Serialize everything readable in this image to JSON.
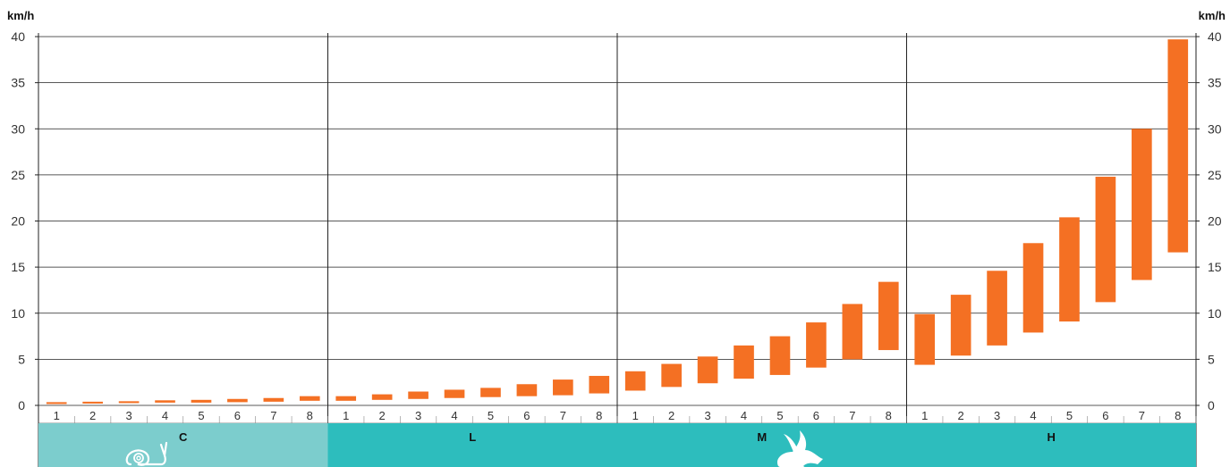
{
  "chart_data": {
    "type": "bar",
    "unit_label_left": "km/h",
    "unit_label_right": "km/h",
    "ylim": [
      0,
      40
    ],
    "yticks": [
      "0",
      "5",
      "10",
      "15",
      "20",
      "25",
      "30",
      "35",
      "40"
    ],
    "gear_labels": [
      "1",
      "2",
      "3",
      "4",
      "5",
      "6",
      "7",
      "8"
    ],
    "grid": true,
    "colors": {
      "bar": "#f47023",
      "range_C": "#7ccdcd",
      "range_other": "#2dbdbd",
      "grid": "#222222"
    },
    "ranges": [
      {
        "name": "C",
        "icon": "snail-icon",
        "bars": [
          [
            0.15,
            0.35
          ],
          [
            0.2,
            0.4
          ],
          [
            0.25,
            0.45
          ],
          [
            0.3,
            0.55
          ],
          [
            0.3,
            0.6
          ],
          [
            0.35,
            0.7
          ],
          [
            0.4,
            0.8
          ],
          [
            0.5,
            1.0
          ]
        ]
      },
      {
        "name": "L",
        "bars": [
          [
            0.5,
            1.0
          ],
          [
            0.6,
            1.2
          ],
          [
            0.7,
            1.5
          ],
          [
            0.8,
            1.7
          ],
          [
            0.9,
            1.9
          ],
          [
            1.0,
            2.3
          ],
          [
            1.1,
            2.8
          ],
          [
            1.3,
            3.2
          ]
        ]
      },
      {
        "name": "M",
        "icon": "hare-icon",
        "bars": [
          [
            1.6,
            3.7
          ],
          [
            2.0,
            4.5
          ],
          [
            2.4,
            5.3
          ],
          [
            2.9,
            6.5
          ],
          [
            3.3,
            7.5
          ],
          [
            4.1,
            9.0
          ],
          [
            5.0,
            11.0
          ],
          [
            6.0,
            13.4
          ]
        ]
      },
      {
        "name": "H",
        "bars": [
          [
            4.4,
            9.9
          ],
          [
            5.4,
            12.0
          ],
          [
            6.5,
            14.6
          ],
          [
            7.9,
            17.6
          ],
          [
            9.1,
            20.4
          ],
          [
            11.2,
            24.8
          ],
          [
            13.6,
            30.0
          ],
          [
            16.6,
            39.7
          ]
        ]
      }
    ]
  }
}
